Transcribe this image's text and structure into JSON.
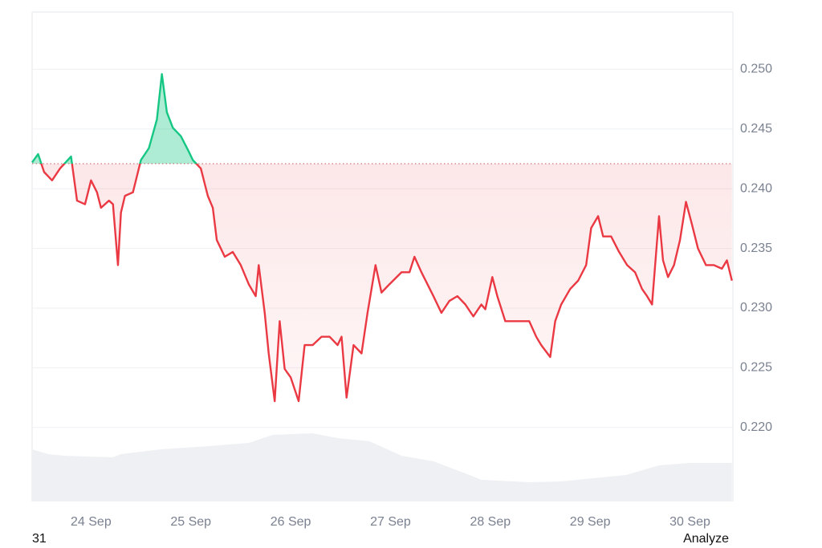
{
  "chart_data": {
    "type": "line",
    "xlim": [
      23.41,
      30.43
    ],
    "xticks": [
      {
        "value": 24,
        "label": "24 Sep"
      },
      {
        "value": 25,
        "label": "25 Sep"
      },
      {
        "value": 26,
        "label": "26 Sep"
      },
      {
        "value": 27,
        "label": "27 Sep"
      },
      {
        "value": 28,
        "label": "28 Sep"
      },
      {
        "value": 29,
        "label": "29 Sep"
      },
      {
        "value": 30,
        "label": "30 Sep"
      }
    ],
    "ylim": [
      0.2138,
      0.2548
    ],
    "yticks": [
      {
        "value": 0.22,
        "label": "0.220"
      },
      0.225,
      {
        "value": 0.23,
        "label": "0.230"
      },
      0.235,
      {
        "value": 0.24,
        "label": "0.240"
      },
      0.245,
      {
        "value": 0.25,
        "label": "0.250"
      }
    ],
    "grid": true,
    "baseline": 0.2421,
    "above_color": "#16c784",
    "below_color": "#ea3943",
    "series": [
      {
        "x": [
          23.41,
          23.47,
          23.53,
          23.61,
          23.69,
          23.8,
          23.86,
          23.94,
          24.0,
          24.06,
          24.1,
          24.18,
          24.22,
          24.27,
          24.3,
          24.34,
          24.42,
          24.5,
          24.58,
          24.66,
          24.71,
          24.76,
          24.82,
          24.9,
          24.98,
          25.02,
          25.1,
          25.17,
          25.22,
          25.26,
          25.34,
          25.42,
          25.5,
          25.58,
          25.65,
          25.68,
          25.74,
          25.78,
          25.84,
          25.89,
          25.94,
          26.0,
          26.08,
          26.14,
          26.22,
          26.31,
          26.39,
          26.47,
          26.51,
          26.56,
          26.63,
          26.71,
          26.77,
          26.85,
          26.91,
          26.99,
          27.11,
          27.19,
          27.24,
          27.31,
          27.43,
          27.51,
          27.59,
          27.67,
          27.75,
          27.83,
          27.91,
          27.95,
          28.02,
          28.07,
          28.15,
          28.23,
          28.31,
          28.39,
          28.46,
          28.51,
          28.6,
          28.65,
          28.71,
          28.8,
          28.88,
          28.96,
          29.01,
          29.08,
          29.13,
          29.21,
          29.29,
          29.37,
          29.45,
          29.52,
          29.57,
          29.62,
          29.69,
          29.73,
          29.78,
          29.84,
          29.9,
          29.96,
          30.02,
          30.08,
          30.16,
          30.24,
          30.32,
          30.37,
          30.42
        ],
        "values": [
          0.2422,
          0.2429,
          0.2414,
          0.2407,
          0.2417,
          0.2427,
          0.239,
          0.2387,
          0.2407,
          0.2397,
          0.2384,
          0.239,
          0.2387,
          0.2336,
          0.238,
          0.2394,
          0.2397,
          0.2424,
          0.2434,
          0.2458,
          0.2496,
          0.2464,
          0.2451,
          0.2444,
          0.2431,
          0.2424,
          0.2417,
          0.2394,
          0.2384,
          0.2357,
          0.2343,
          0.2347,
          0.2336,
          0.232,
          0.231,
          0.2336,
          0.2296,
          0.2262,
          0.2222,
          0.2289,
          0.2249,
          0.2242,
          0.2222,
          0.2269,
          0.2269,
          0.2276,
          0.2276,
          0.2269,
          0.2276,
          0.2225,
          0.2269,
          0.2262,
          0.2296,
          0.2336,
          0.2313,
          0.232,
          0.233,
          0.233,
          0.2343,
          0.233,
          0.231,
          0.2296,
          0.2306,
          0.231,
          0.2303,
          0.2293,
          0.2303,
          0.2299,
          0.2326,
          0.231,
          0.2289,
          0.2289,
          0.2289,
          0.2289,
          0.2276,
          0.2269,
          0.2259,
          0.2289,
          0.2303,
          0.2316,
          0.2323,
          0.2336,
          0.2367,
          0.2377,
          0.236,
          0.236,
          0.2347,
          0.2336,
          0.233,
          0.2316,
          0.231,
          0.2303,
          0.2377,
          0.234,
          0.2326,
          0.2336,
          0.2357,
          0.2389,
          0.237,
          0.235,
          0.2336,
          0.2336,
          0.2333,
          0.234,
          0.2323
        ]
      },
      {
        "type": "area",
        "color": "#eef0f3",
        "x": [
          23.41,
          23.57,
          23.73,
          24.22,
          24.3,
          24.7,
          25.18,
          25.58,
          25.82,
          26.22,
          26.47,
          26.79,
          27.11,
          27.43,
          27.75,
          27.91,
          28.39,
          28.71,
          29.03,
          29.36,
          29.69,
          30.0,
          30.42
        ],
        "values": [
          65,
          59,
          57,
          55,
          59,
          65,
          69,
          73,
          83,
          85,
          79,
          75,
          57,
          50,
          35,
          27,
          24,
          25,
          29,
          33,
          45,
          48,
          48
        ]
      }
    ],
    "footer_left": "31",
    "footer_right": "Analyze"
  }
}
